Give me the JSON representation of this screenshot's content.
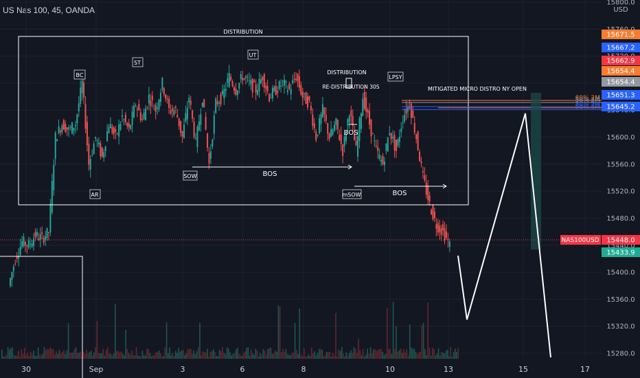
{
  "header": {
    "symbol_title": "US Nas 100, 45, OANDA"
  },
  "price_axis": {
    "currency": "USD"
  },
  "chart_data": {
    "type": "candlestick",
    "symbol": "US Nas 100",
    "interval": "45",
    "exchange": "OANDA",
    "y_ticks": [
      15280,
      15320,
      15360,
      15400,
      15440,
      15480,
      15520,
      15560,
      15600,
      15640,
      15680,
      15720,
      15760,
      15800
    ],
    "y_tick_labels": [
      "15280.0",
      "15320.0",
      "15360.0",
      "15400.0",
      "15440.0",
      "15480.0",
      "15520.0",
      "15560.0",
      "15600.0",
      "15640.0",
      "15680.0",
      "15720.0",
      "15760.0",
      "15800.0"
    ],
    "ylim": [
      15270,
      15805
    ],
    "x_ticks": [
      "30",
      "Sep",
      "3",
      "6",
      "8",
      "10",
      "13",
      "15",
      "17"
    ],
    "current_price": {
      "label": "NAS100USD",
      "value": "15448.0",
      "raw": 15448.0
    },
    "price_tags": [
      {
        "value": "15671.5",
        "raw": 15671.5,
        "color": "#f57c30"
      },
      {
        "value": "15667.2",
        "raw": 15667.2,
        "color": "#2962ff"
      },
      {
        "value": "15662.9",
        "raw": 15662.9,
        "color": "#f23645"
      },
      {
        "value": "15654.4",
        "raw": 15654.4,
        "color": "#f57c30"
      },
      {
        "value": "15654.4",
        "raw": 15654.4,
        "color": "#9598a1"
      },
      {
        "value": "15651.3",
        "raw": 15651.3,
        "color": "#2962ff"
      },
      {
        "value": "15645.2",
        "raw": 15645.2,
        "color": "#2962ff"
      },
      {
        "value": "15433.9",
        "raw": 15433.9,
        "color": "#22ab94"
      }
    ],
    "fib_levels": [
      {
        "label": "80% 2M",
        "raw": 15654.4,
        "color": "#f57c30"
      },
      {
        "label": "50% 2M",
        "raw": 15651.3,
        "color": "#9598a1"
      },
      {
        "label": "80% 5M",
        "raw": 15645.2,
        "color": "#2962ff"
      },
      {
        "label": "50% 5M",
        "raw": 15641.0,
        "color": "#2962ff"
      }
    ],
    "annotations": {
      "distribution": "DISTRIBUTION",
      "distribution_small": "DISTRIBUTION",
      "redistribution": "RE-DISTRIBUTION 30S",
      "mitigated": "MITIGATED MICRO DISTRO NY OPEN",
      "bc": "BC",
      "st": "ST",
      "ut": "UT",
      "lpsy": "LPSY",
      "ar": "AR",
      "sow": "SOW",
      "msow": "mSOW",
      "bos1": "BOS",
      "bos2": "BOS",
      "bos3": "BOS"
    },
    "series": [
      {
        "name": "price",
        "values": [
          15380,
          15420,
          15445,
          15440,
          15455,
          15450,
          15460,
          15600,
          15620,
          15610,
          15620,
          15680,
          15560,
          15600,
          15570,
          15620,
          15600,
          15630,
          15610,
          15650,
          15625,
          15660,
          15640,
          15680,
          15640,
          15640,
          15600,
          15660,
          15590,
          15660,
          15560,
          15650,
          15660,
          15690,
          15670,
          15690,
          15680,
          15670,
          15690,
          15660,
          15670,
          15680,
          15670,
          15690,
          15660,
          15650,
          15600,
          15640,
          15600,
          15620,
          15580,
          15640,
          15580,
          15660,
          15620,
          15580,
          15560,
          15610,
          15580,
          15630,
          15650,
          15600,
          15540,
          15500,
          15470,
          15460,
          15440
        ]
      }
    ]
  }
}
